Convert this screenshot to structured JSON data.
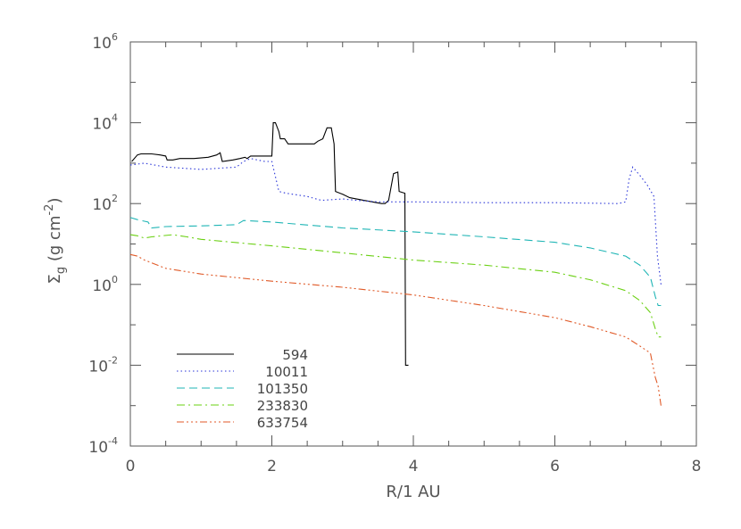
{
  "chart_data": {
    "type": "line",
    "xlabel": "R/1 AU",
    "ylabel": "Σ_g (g cm^-2)",
    "xlim": [
      0,
      8
    ],
    "ylim": [
      0.0001,
      1000000
    ],
    "yscale": "log",
    "x_ticks": [
      "0",
      "2",
      "4",
      "6",
      "8"
    ],
    "y_ticks": [
      {
        "base": "10",
        "exp": "-4"
      },
      {
        "base": "10",
        "exp": "-2"
      },
      {
        "base": "10",
        "exp": "0"
      },
      {
        "base": "10",
        "exp": "2"
      },
      {
        "base": "10",
        "exp": "4"
      },
      {
        "base": "10",
        "exp": "6"
      }
    ],
    "legend_position": "bottom-left",
    "series": [
      {
        "name": "594",
        "color": "#000000",
        "dash": "solid",
        "x": [
          0.02,
          0.1,
          0.15,
          0.3,
          0.42,
          0.5,
          0.52,
          0.6,
          0.7,
          0.9,
          1.1,
          1.22,
          1.27,
          1.3,
          1.45,
          1.55,
          1.62,
          1.65,
          1.7,
          1.9,
          2.0,
          2.02,
          2.05,
          2.1,
          2.12,
          2.18,
          2.23,
          2.6,
          2.65,
          2.72,
          2.78,
          2.84,
          2.88,
          2.9,
          3.0,
          3.1,
          3.3,
          3.55,
          3.6,
          3.65,
          3.72,
          3.78,
          3.8,
          3.88,
          3.89,
          3.92,
          3.93
        ],
        "y": [
          1100,
          1600,
          1700,
          1700,
          1600,
          1500,
          1200,
          1200,
          1300,
          1300,
          1400,
          1600,
          1800,
          1100,
          1200,
          1300,
          1400,
          1300,
          1500,
          1500,
          1500,
          10000,
          10000,
          6000,
          4000,
          4000,
          3000,
          3000,
          3500,
          4000,
          7500,
          7500,
          3000,
          200,
          170,
          140,
          120,
          100,
          100,
          120,
          550,
          600,
          200,
          180,
          0.01,
          0.01,
          0.01
        ]
      },
      {
        "name": "10011",
        "color": "#2a35d8",
        "dash": "dotted",
        "x": [
          0.0,
          0.2,
          0.5,
          1.0,
          1.5,
          1.6,
          1.7,
          1.9,
          2.0,
          2.1,
          2.2,
          2.5,
          2.7,
          3.0,
          3.2,
          3.5,
          4.0,
          5.0,
          6.0,
          6.9,
          7.0,
          7.05,
          7.1,
          7.2,
          7.3,
          7.4,
          7.45,
          7.5
        ],
        "y": [
          900,
          1000,
          800,
          700,
          800,
          1100,
          1300,
          1100,
          1100,
          200,
          180,
          150,
          120,
          130,
          120,
          110,
          110,
          105,
          105,
          100,
          110,
          400,
          800,
          500,
          300,
          150,
          5,
          1
        ]
      },
      {
        "name": "101350",
        "color": "#1fb5b5",
        "dash": "dashed",
        "x": [
          0.0,
          0.1,
          0.25,
          0.3,
          0.5,
          1.0,
          1.5,
          1.6,
          2.0,
          3.0,
          4.0,
          5.0,
          6.0,
          6.5,
          7.0,
          7.2,
          7.35,
          7.42,
          7.46,
          7.5
        ],
        "y": [
          45,
          40,
          35,
          25,
          27,
          28,
          30,
          38,
          35,
          25,
          20,
          15,
          11,
          8,
          5,
          3,
          1.5,
          0.5,
          0.3,
          0.3
        ]
      },
      {
        "name": "233830",
        "color": "#6ad012",
        "dash": "dashdot",
        "x": [
          0.0,
          0.1,
          0.2,
          0.3,
          0.6,
          0.8,
          1.0,
          2.0,
          3.0,
          4.0,
          5.0,
          6.0,
          6.5,
          7.0,
          7.2,
          7.35,
          7.42,
          7.46,
          7.5
        ],
        "y": [
          17,
          16,
          14,
          15,
          17,
          15,
          13,
          9,
          6,
          4,
          3,
          2,
          1.3,
          0.7,
          0.4,
          0.2,
          0.08,
          0.05,
          0.05
        ]
      },
      {
        "name": "633754",
        "color": "#e05a28",
        "dash": "dashdotdotdot",
        "x": [
          0.0,
          0.1,
          0.2,
          0.5,
          1.0,
          2.0,
          3.0,
          4.0,
          5.0,
          6.0,
          6.5,
          7.0,
          7.2,
          7.35,
          7.42,
          7.46,
          7.5
        ],
        "y": [
          5.5,
          5,
          4,
          2.5,
          1.8,
          1.2,
          0.85,
          0.55,
          0.3,
          0.15,
          0.09,
          0.05,
          0.03,
          0.02,
          0.005,
          0.003,
          0.001
        ]
      }
    ]
  }
}
